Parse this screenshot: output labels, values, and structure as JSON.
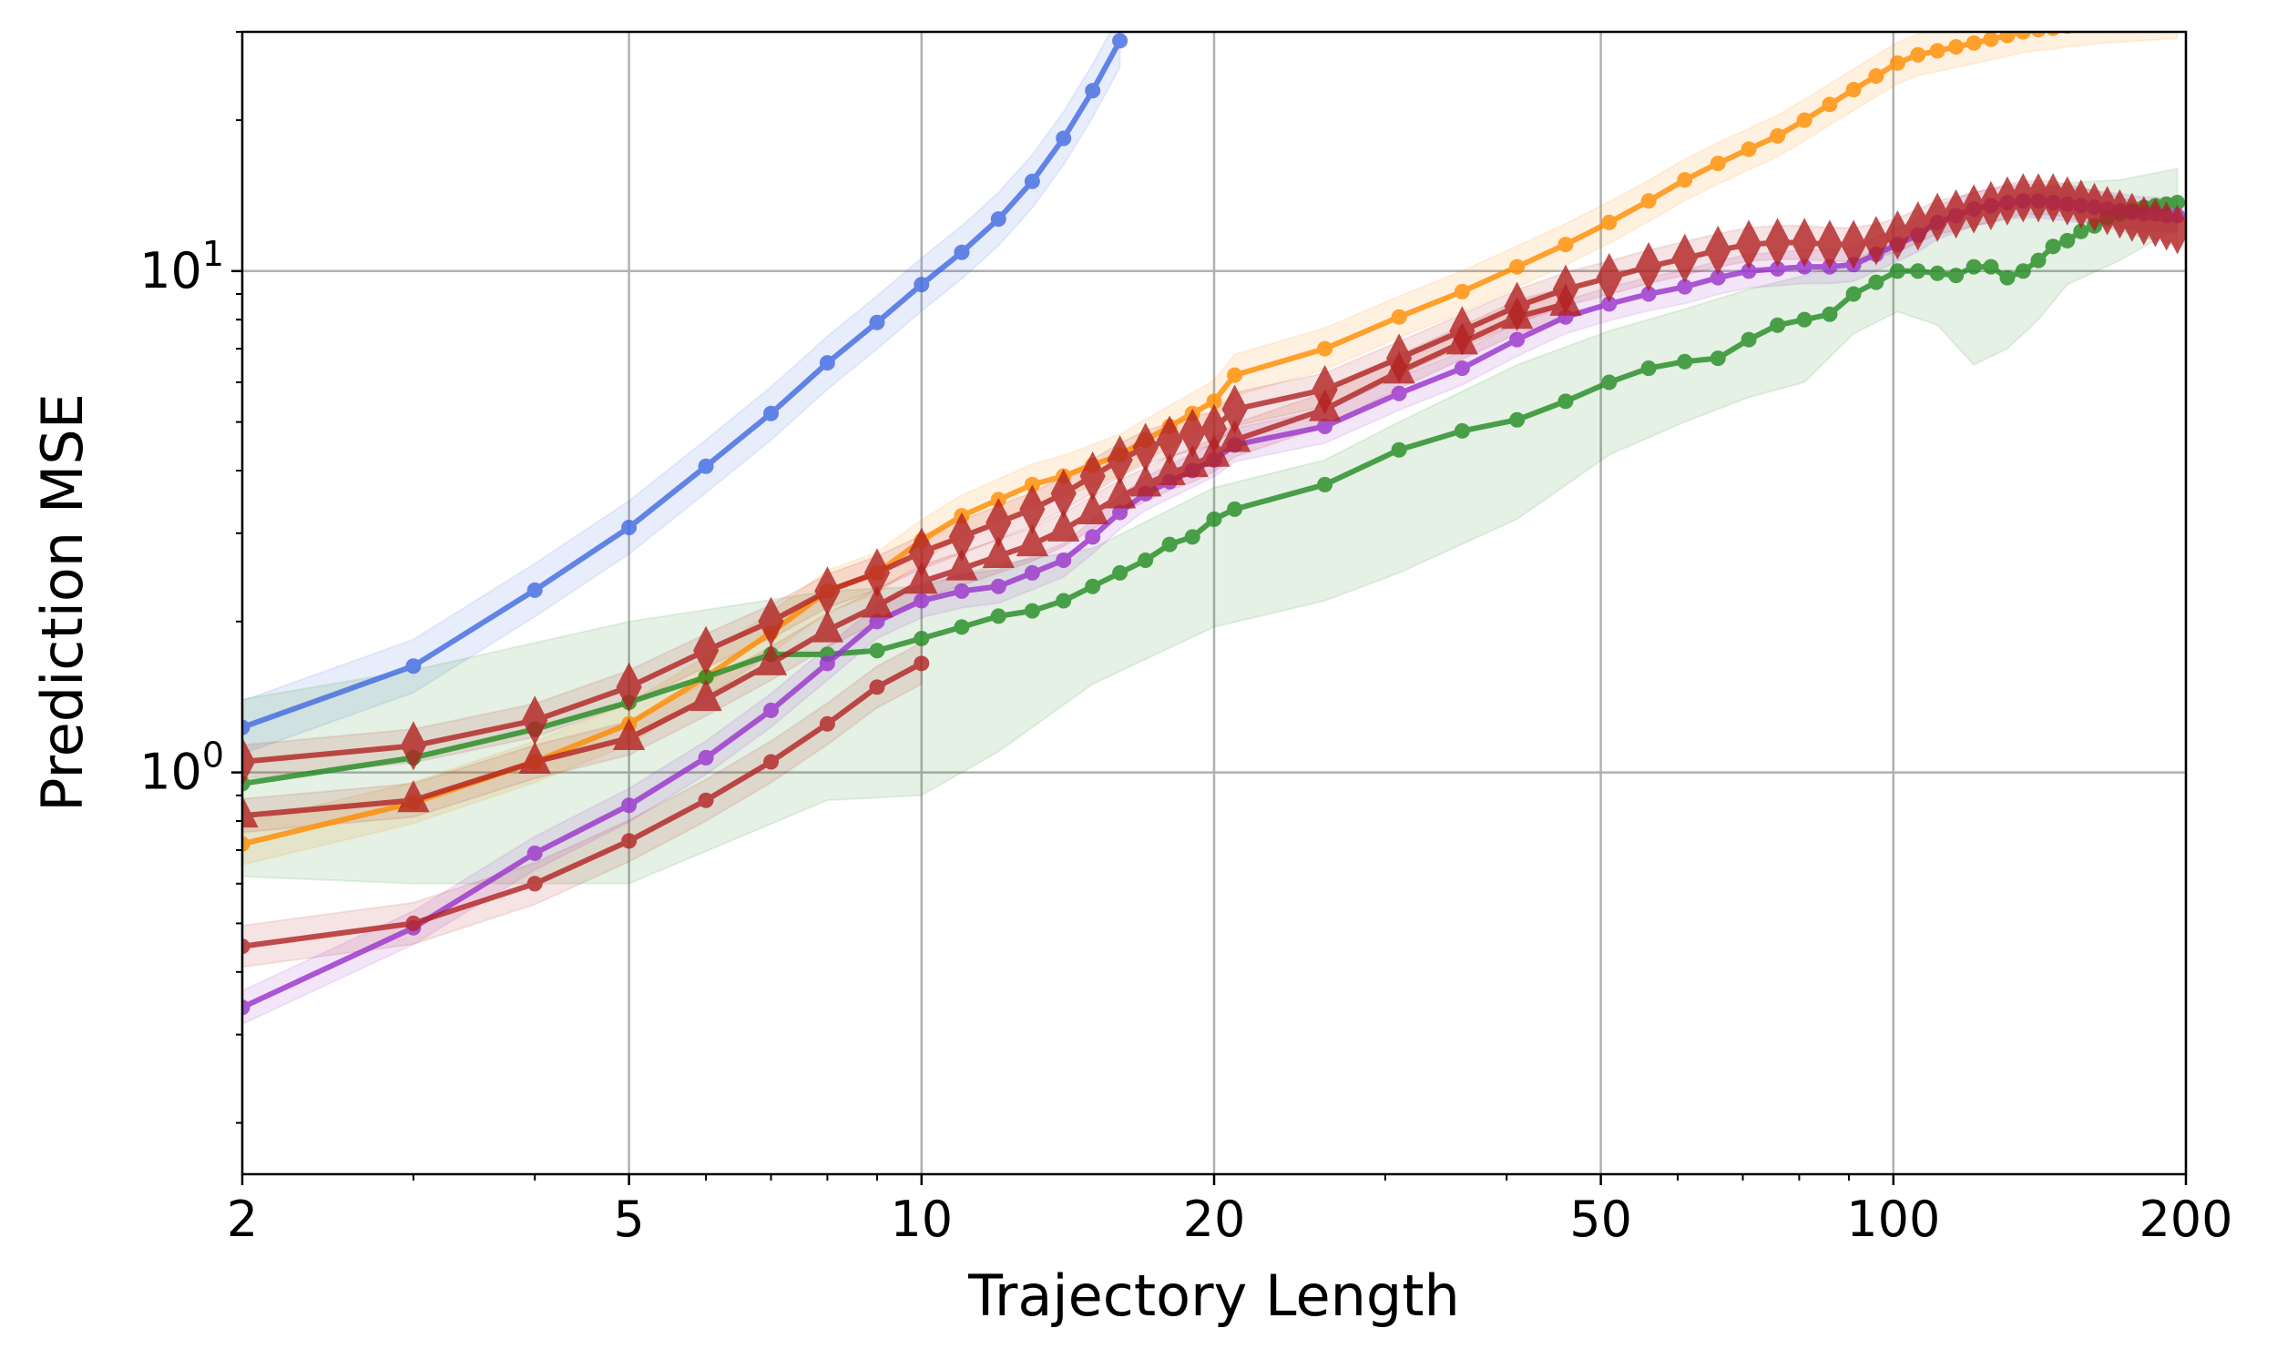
{
  "chart_data": {
    "type": "line",
    "title": "",
    "xlabel": "Trajectory Length",
    "ylabel": "Prediction MSE",
    "xscale": "log",
    "yscale": "log",
    "xlim": [
      2,
      200
    ],
    "ylim": [
      0.158,
      30
    ],
    "grid": true,
    "legend": "none",
    "x_ticks": [
      {
        "value": 2,
        "label": "2"
      },
      {
        "value": 5,
        "label": "5"
      },
      {
        "value": 10,
        "label": "10"
      },
      {
        "value": 20,
        "label": "20"
      },
      {
        "value": 50,
        "label": "50"
      },
      {
        "value": 100,
        "label": "100"
      },
      {
        "value": 200,
        "label": "200"
      }
    ],
    "y_ticks": [
      {
        "value": 1,
        "base": "10",
        "exp": "0"
      },
      {
        "value": 10,
        "base": "10",
        "exp": "1"
      }
    ],
    "series": [
      {
        "color": "#4169e1",
        "marker": "circle",
        "band_rel": 0.13,
        "x": [
          2,
          3,
          4,
          5,
          6,
          7,
          8,
          9,
          10,
          11,
          12,
          13,
          14,
          15,
          16
        ],
        "values": [
          1.23,
          1.63,
          2.31,
          3.08,
          4.08,
          5.2,
          6.56,
          7.9,
          9.4,
          10.9,
          12.7,
          15.1,
          18.4,
          22.9,
          28.8
        ]
      },
      {
        "color": "#ff8c00",
        "marker": "circle",
        "band_rel": 0.1,
        "x": [
          2,
          3,
          4,
          5,
          6,
          7,
          8,
          9,
          10,
          11,
          12,
          13,
          14,
          15,
          16,
          17,
          18,
          19,
          20,
          21,
          26,
          31,
          36,
          41,
          46,
          51,
          56,
          61,
          66,
          71,
          76,
          81,
          86,
          91,
          96,
          101,
          106,
          111,
          116,
          121,
          126,
          131,
          136,
          141,
          146,
          151,
          156,
          161,
          166,
          171,
          176,
          181,
          186,
          191,
          196
        ],
        "values": [
          0.72,
          0.87,
          1.05,
          1.25,
          1.55,
          1.9,
          2.3,
          2.5,
          2.9,
          3.25,
          3.5,
          3.75,
          3.9,
          4.1,
          4.3,
          4.6,
          4.9,
          5.2,
          5.5,
          6.2,
          7.0,
          8.1,
          9.1,
          10.2,
          11.3,
          12.5,
          13.8,
          15.2,
          16.4,
          17.5,
          18.6,
          20,
          21.5,
          23,
          24.5,
          26,
          27,
          27.5,
          28,
          28.5,
          29,
          29.5,
          30,
          30.3,
          30.5,
          30.8,
          31,
          31.2,
          31.4,
          31.5,
          31.6,
          31.7,
          31.8,
          31.9,
          32
        ]
      },
      {
        "color": "#228b22",
        "marker": "circle",
        "x": [
          2,
          3,
          4,
          5,
          6,
          7,
          8,
          9,
          10,
          11,
          12,
          13,
          14,
          15,
          16,
          17,
          18,
          19,
          20,
          21,
          26,
          31,
          36,
          41,
          46,
          51,
          56,
          61,
          66,
          71,
          76,
          81,
          86,
          91,
          96,
          101,
          106,
          111,
          116,
          121,
          126,
          131,
          136,
          141,
          146,
          151,
          156,
          161,
          166,
          171,
          176,
          181,
          186,
          191,
          196
        ],
        "values": [
          0.95,
          1.07,
          1.22,
          1.38,
          1.55,
          1.72,
          1.72,
          1.75,
          1.85,
          1.95,
          2.05,
          2.1,
          2.2,
          2.35,
          2.5,
          2.65,
          2.85,
          2.95,
          3.2,
          3.35,
          3.75,
          4.4,
          4.8,
          5.05,
          5.5,
          6.0,
          6.4,
          6.6,
          6.7,
          7.3,
          7.8,
          8.0,
          8.2,
          9.0,
          9.5,
          10.0,
          10.0,
          9.9,
          9.8,
          10.2,
          10.2,
          9.7,
          10.0,
          10.5,
          11.2,
          11.5,
          12.0,
          12.3,
          12.8,
          13.0,
          13.2,
          13.4,
          13.5,
          13.6,
          13.7
        ],
        "band_x": [
          2,
          3,
          5,
          8,
          10,
          12,
          15,
          20,
          26,
          31,
          41,
          51,
          61,
          71,
          81,
          91,
          101,
          111,
          121,
          131,
          141,
          151,
          171,
          196
        ],
        "band_lower": [
          0.62,
          0.6,
          0.6,
          0.88,
          0.9,
          1.1,
          1.5,
          1.95,
          2.2,
          2.5,
          3.2,
          4.3,
          5.0,
          5.6,
          6.0,
          7.5,
          8.3,
          7.8,
          6.5,
          7.0,
          8.0,
          9.4,
          10.5,
          12.2
        ],
        "band_upper": [
          1.4,
          1.6,
          2.0,
          2.3,
          2.35,
          2.6,
          2.8,
          3.7,
          4.2,
          5.0,
          6.5,
          7.6,
          8.4,
          9.2,
          9.8,
          10.5,
          11.5,
          12.2,
          12.8,
          13.5,
          14.5,
          15.0,
          15.2,
          16.0
        ]
      },
      {
        "color": "#9932cc",
        "marker": "circle",
        "band_rel": 0.08,
        "x": [
          2,
          3,
          4,
          5,
          6,
          7,
          8,
          9,
          10,
          11,
          12,
          13,
          14,
          15,
          16,
          17,
          18,
          19,
          20,
          21,
          26,
          31,
          36,
          41,
          46,
          51,
          56,
          61,
          66,
          71,
          76,
          81,
          86,
          91,
          96,
          101,
          106,
          111,
          116,
          121,
          126,
          131,
          136,
          141,
          146,
          151,
          156,
          161,
          166,
          171,
          176,
          181,
          186,
          191,
          196
        ],
        "values": [
          0.34,
          0.49,
          0.69,
          0.86,
          1.07,
          1.33,
          1.65,
          2.0,
          2.2,
          2.3,
          2.35,
          2.5,
          2.65,
          2.95,
          3.3,
          3.6,
          3.8,
          4.0,
          4.2,
          4.5,
          4.9,
          5.7,
          6.4,
          7.3,
          8.1,
          8.6,
          9.0,
          9.3,
          9.7,
          10.0,
          10.1,
          10.2,
          10.2,
          10.3,
          10.8,
          11.3,
          11.8,
          12.5,
          12.9,
          13.3,
          13.5,
          13.7,
          13.8,
          13.8,
          13.7,
          13.6,
          13.5,
          13.4,
          13.3,
          13.2,
          13.1,
          13.0,
          13.0,
          12.9,
          12.9
        ]
      },
      {
        "color": "#b22222",
        "marker": "circle",
        "band_rel": 0.1,
        "x": [
          2,
          3,
          4,
          5,
          6,
          7,
          8,
          9,
          10
        ],
        "values": [
          0.45,
          0.5,
          0.6,
          0.73,
          0.88,
          1.05,
          1.25,
          1.48,
          1.65
        ]
      },
      {
        "color": "#b22222",
        "marker": "triangle",
        "band_rel": 0.08,
        "x": [
          2,
          3,
          4,
          5,
          6,
          7,
          8,
          9,
          10,
          11,
          12,
          13,
          14,
          15,
          16,
          17,
          18,
          19,
          20,
          21,
          26,
          31,
          36,
          41,
          46
        ],
        "values": [
          0.82,
          0.88,
          1.05,
          1.17,
          1.4,
          1.65,
          1.92,
          2.15,
          2.4,
          2.55,
          2.7,
          2.85,
          3.05,
          3.3,
          3.55,
          3.75,
          3.95,
          4.1,
          4.3,
          4.6,
          5.3,
          6.3,
          7.2,
          8.1,
          8.6
        ]
      },
      {
        "color": "#b22222",
        "marker": "diamond",
        "band_rel": 0.08,
        "x": [
          2,
          3,
          4,
          5,
          6,
          7,
          8,
          9,
          10,
          11,
          12,
          13,
          14,
          15,
          16,
          17,
          18,
          19,
          20,
          21,
          26,
          31,
          36,
          41,
          46,
          51,
          56,
          61,
          66,
          71,
          76,
          81,
          86,
          91,
          96,
          101,
          106,
          111,
          116,
          121,
          126,
          131,
          136,
          141,
          146,
          151,
          156,
          161,
          166,
          171,
          176,
          181,
          186,
          191,
          196
        ],
        "values": [
          1.05,
          1.13,
          1.27,
          1.48,
          1.75,
          2.0,
          2.3,
          2.5,
          2.75,
          2.95,
          3.15,
          3.35,
          3.6,
          3.9,
          4.2,
          4.45,
          4.6,
          4.75,
          4.85,
          5.3,
          5.8,
          6.7,
          7.6,
          8.5,
          9.2,
          9.7,
          10.2,
          10.6,
          11.0,
          11.3,
          11.4,
          11.4,
          11.3,
          11.3,
          11.5,
          11.8,
          12.3,
          12.8,
          13.0,
          13.3,
          13.5,
          13.8,
          14.0,
          14.0,
          14.0,
          13.8,
          13.6,
          13.4,
          13.2,
          13.0,
          12.8,
          12.6,
          12.5,
          12.3,
          12.1
        ]
      }
    ]
  }
}
